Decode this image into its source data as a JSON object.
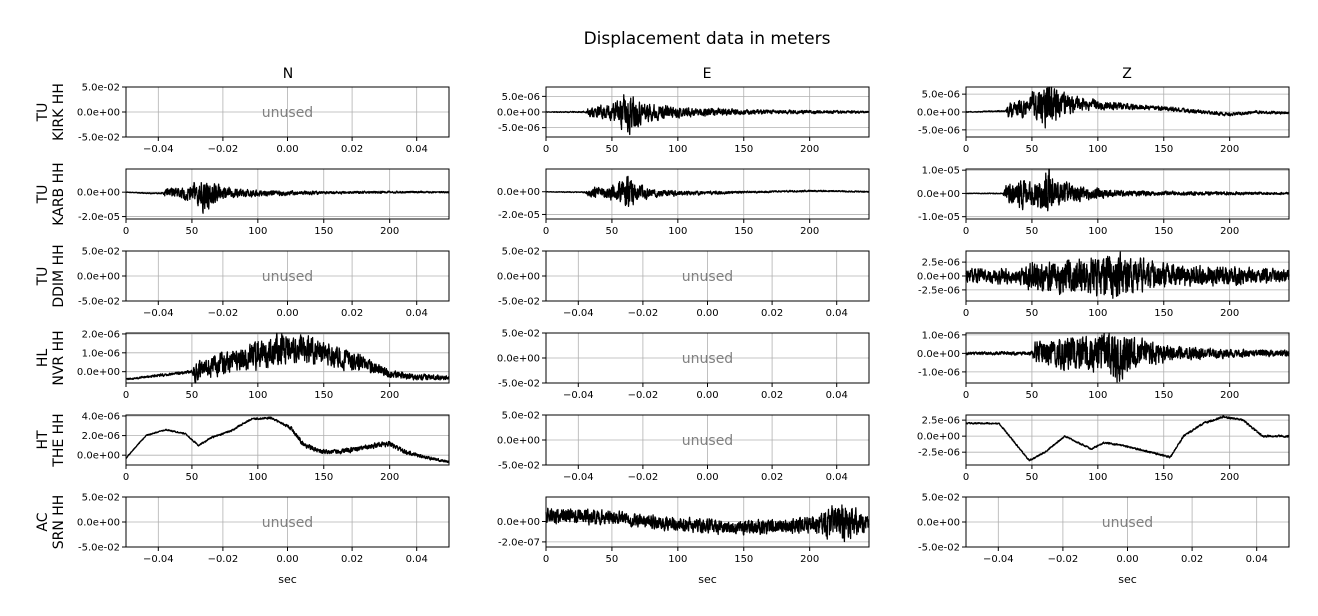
{
  "chart_data": {
    "type": "line",
    "title": "Displacement data in meters",
    "columns": [
      "N",
      "E",
      "Z"
    ],
    "stations": [
      {
        "net": "TU",
        "name": "KIRK HH"
      },
      {
        "net": "TU",
        "name": "KARB HH"
      },
      {
        "net": "TU",
        "name": "DDIM HH"
      },
      {
        "net": "HL",
        "name": "NVR HH"
      },
      {
        "net": "HT",
        "name": "THE HH"
      },
      {
        "net": "AC",
        "name": "SRN HH"
      }
    ],
    "xlabel": "sec",
    "unused_label": "unused",
    "used_xlim": [
      0,
      245
    ],
    "used_xticks": [
      0,
      50,
      100,
      150,
      200
    ],
    "used_xtick_labels": [
      "0",
      "50",
      "100",
      "150",
      "200"
    ],
    "unused_xlim": [
      -0.05,
      0.05
    ],
    "unused_xticks": [
      -0.04,
      -0.02,
      0.0,
      0.02,
      0.04
    ],
    "unused_xtick_labels": [
      "−0.04",
      "−0.02",
      "0.00",
      "0.02",
      "0.04"
    ],
    "unused_ylim": [
      -0.05,
      0.05
    ],
    "unused_yticks": [
      -0.05,
      0.0,
      0.05
    ],
    "unused_ytick_labels": [
      "-5.0e-02",
      "0.0e+00",
      "5.0e-02"
    ],
    "grid": true,
    "traces": [
      [
        {
          "used": false
        },
        {
          "used": true,
          "ylim": [
            -8e-06,
            8e-06
          ],
          "yticks": [
            -5e-06,
            0,
            5e-06
          ],
          "ytick_labels": [
            "-5.0e-06",
            "0.0e+00",
            "5.0e-06"
          ],
          "seed": 11,
          "envelope": [
            [
              0,
              1e-07
            ],
            [
              30,
              2e-07
            ],
            [
              32,
              1.5e-06
            ],
            [
              45,
              2e-06
            ],
            [
              55,
              3.5e-06
            ],
            [
              62,
              7e-06
            ],
            [
              68,
              4e-06
            ],
            [
              80,
              2.5e-06
            ],
            [
              100,
              1.5e-06
            ],
            [
              150,
              7e-07
            ],
            [
              245,
              3e-07
            ]
          ],
          "baseline": [
            [
              0,
              0
            ],
            [
              245,
              0
            ]
          ]
        },
        {
          "used": true,
          "ylim": [
            -7e-06,
            7e-06
          ],
          "yticks": [
            -5e-06,
            0,
            5e-06
          ],
          "ytick_labels": [
            "-5.0e-06",
            "0.0e+00",
            "5.0e-06"
          ],
          "seed": 12,
          "envelope": [
            [
              0,
              1e-07
            ],
            [
              30,
              2e-07
            ],
            [
              32,
              2e-06
            ],
            [
              45,
              2.5e-06
            ],
            [
              55,
              4e-06
            ],
            [
              62,
              7e-06
            ],
            [
              70,
              3.5e-06
            ],
            [
              90,
              1.5e-06
            ],
            [
              130,
              6e-07
            ],
            [
              245,
              3e-07
            ]
          ],
          "baseline": [
            [
              0,
              0
            ],
            [
              30,
              3e-07
            ],
            [
              60,
              2.5e-06
            ],
            [
              100,
              2e-06
            ],
            [
              150,
              1e-06
            ],
            [
              200,
              -7e-07
            ],
            [
              220,
              0
            ],
            [
              245,
              -3e-07
            ]
          ]
        }
      ],
      [
        {
          "used": true,
          "ylim": [
            -2.2e-05,
            1.9e-05
          ],
          "yticks": [
            -2e-05,
            0
          ],
          "ytick_labels": [
            "-2.0e-05",
            "0.0e+00"
          ],
          "seed": 21,
          "envelope": [
            [
              0,
              2e-07
            ],
            [
              28,
              5e-07
            ],
            [
              30,
              4e-06
            ],
            [
              45,
              5e-06
            ],
            [
              55,
              9e-06
            ],
            [
              60,
              1.8e-05
            ],
            [
              66,
              8e-06
            ],
            [
              80,
              4e-06
            ],
            [
              100,
              2.5e-06
            ],
            [
              150,
              1e-06
            ],
            [
              245,
              6e-07
            ]
          ],
          "baseline": [
            [
              0,
              0
            ],
            [
              20,
              -1e-06
            ],
            [
              40,
              -5e-07
            ],
            [
              100,
              -1e-06
            ],
            [
              200,
              0
            ],
            [
              245,
              0
            ]
          ]
        },
        {
          "used": true,
          "ylim": [
            -2.4e-05,
            2e-05
          ],
          "yticks": [
            -2e-05,
            0
          ],
          "ytick_labels": [
            "-2.0e-05",
            "0.0e+00"
          ],
          "seed": 22,
          "envelope": [
            [
              0,
              2e-07
            ],
            [
              30,
              5e-07
            ],
            [
              32,
              3.5e-06
            ],
            [
              45,
              4.5e-06
            ],
            [
              55,
              8e-06
            ],
            [
              62,
              1.6e-05
            ],
            [
              68,
              7e-06
            ],
            [
              80,
              3.5e-06
            ],
            [
              100,
              2e-06
            ],
            [
              150,
              8e-07
            ],
            [
              245,
              5e-07
            ]
          ],
          "baseline": [
            [
              0,
              0
            ],
            [
              30,
              -5e-07
            ],
            [
              100,
              -1.5e-06
            ],
            [
              150,
              -5e-07
            ],
            [
              200,
              8e-07
            ],
            [
              245,
              0
            ]
          ]
        },
        {
          "used": true,
          "ylim": [
            -1.1e-05,
            1.05e-05
          ],
          "yticks": [
            -1e-05,
            0,
            1e-05
          ],
          "ytick_labels": [
            "-1.0e-05",
            "0.0e+00",
            "1.0e-05"
          ],
          "seed": 23,
          "envelope": [
            [
              0,
              1e-07
            ],
            [
              28,
              2e-07
            ],
            [
              30,
              3e-06
            ],
            [
              40,
              6e-06
            ],
            [
              50,
              5e-06
            ],
            [
              58,
              7e-06
            ],
            [
              62,
              1.1e-05
            ],
            [
              70,
              5e-06
            ],
            [
              90,
              2.5e-06
            ],
            [
              120,
              1e-06
            ],
            [
              245,
              4e-07
            ]
          ],
          "baseline": [
            [
              0,
              0
            ],
            [
              245,
              0
            ]
          ]
        }
      ],
      [
        {
          "used": false
        },
        {
          "used": false
        },
        {
          "used": true,
          "ylim": [
            -4.5e-06,
            4.5e-06
          ],
          "yticks": [
            -2.5e-06,
            0,
            2.5e-06
          ],
          "ytick_labels": [
            "-2.5e-06",
            "0.0e+00",
            "2.5e-06"
          ],
          "seed": 31,
          "envelope": [
            [
              0,
              1.2e-06
            ],
            [
              45,
              1.3e-06
            ],
            [
              48,
              2.5e-06
            ],
            [
              60,
              2.8e-06
            ],
            [
              80,
              3e-06
            ],
            [
              100,
              3.2e-06
            ],
            [
              110,
              3.8e-06
            ],
            [
              130,
              2.8e-06
            ],
            [
              160,
              2e-06
            ],
            [
              200,
              1.5e-06
            ],
            [
              245,
              1e-06
            ]
          ],
          "baseline": [
            [
              0,
              0
            ],
            [
              245,
              0
            ]
          ]
        }
      ],
      [
        {
          "used": true,
          "ylim": [
            -6e-07,
            2.05e-06
          ],
          "yticks": [
            0,
            1e-06,
            2e-06
          ],
          "ytick_labels": [
            "0.0e+00",
            "1.0e-06",
            "2.0e-06"
          ],
          "seed": 41,
          "envelope": [
            [
              0,
              4e-08
            ],
            [
              50,
              8e-08
            ],
            [
              52,
              5e-07
            ],
            [
              80,
              6e-07
            ],
            [
              100,
              7e-07
            ],
            [
              120,
              8e-07
            ],
            [
              150,
              6e-07
            ],
            [
              180,
              4e-07
            ],
            [
              200,
              2e-07
            ],
            [
              245,
              1e-07
            ]
          ],
          "baseline": [
            [
              0,
              -4e-07
            ],
            [
              50,
              0
            ],
            [
              80,
              5e-07
            ],
            [
              100,
              9e-07
            ],
            [
              120,
              1.2e-06
            ],
            [
              150,
              1e-06
            ],
            [
              180,
              4e-07
            ],
            [
              200,
              -1e-07
            ],
            [
              220,
              -3e-07
            ],
            [
              245,
              -3e-07
            ]
          ]
        },
        {
          "used": false
        },
        {
          "used": true,
          "ylim": [
            -1.6e-06,
            1.1e-06
          ],
          "yticks": [
            -1e-06,
            0,
            1e-06
          ],
          "ytick_labels": [
            "-1.0e-06",
            "0.0e+00",
            "1.0e-06"
          ],
          "seed": 43,
          "envelope": [
            [
              0,
              6e-08
            ],
            [
              50,
              1e-07
            ],
            [
              52,
              6e-07
            ],
            [
              80,
              8e-07
            ],
            [
              100,
              9e-07
            ],
            [
              115,
              1.3e-06
            ],
            [
              130,
              7e-07
            ],
            [
              160,
              3.5e-07
            ],
            [
              200,
              2e-07
            ],
            [
              245,
              1.5e-07
            ]
          ],
          "baseline": [
            [
              0,
              0
            ],
            [
              245,
              0
            ]
          ]
        }
      ],
      [
        {
          "used": true,
          "ylim": [
            -1e-06,
            4.1e-06
          ],
          "yticks": [
            0,
            2e-06,
            4e-06
          ],
          "ytick_labels": [
            "0.0e+00",
            "2.0e-06",
            "4.0e-06"
          ],
          "seed": 51,
          "envelope": [
            [
              0,
              5e-08
            ],
            [
              120,
              1e-07
            ],
            [
              125,
              2e-07
            ],
            [
              200,
              2.5e-07
            ],
            [
              245,
              1e-07
            ]
          ],
          "baseline": [
            [
              0,
              -3e-07
            ],
            [
              15,
              2e-06
            ],
            [
              30,
              2.6e-06
            ],
            [
              45,
              2.2e-06
            ],
            [
              55,
              1e-06
            ],
            [
              65,
              1.8e-06
            ],
            [
              80,
              2.5e-06
            ],
            [
              95,
              3.7e-06
            ],
            [
              110,
              3.8e-06
            ],
            [
              125,
              2.8e-06
            ],
            [
              135,
              1e-06
            ],
            [
              150,
              3e-07
            ],
            [
              170,
              5e-07
            ],
            [
              185,
              9e-07
            ],
            [
              200,
              1.2e-06
            ],
            [
              210,
              4e-07
            ],
            [
              230,
              -3e-07
            ],
            [
              245,
              -7e-07
            ]
          ]
        },
        {
          "used": false
        },
        {
          "used": true,
          "ylim": [
            -4.5e-06,
            3.3e-06
          ],
          "yticks": [
            -2.5e-06,
            0,
            2.5e-06
          ],
          "ytick_labels": [
            "-2.5e-06",
            "0.0e+00",
            "2.5e-06"
          ],
          "seed": 53,
          "envelope": [
            [
              0,
              1e-07
            ],
            [
              245,
              1.5e-07
            ]
          ],
          "baseline": [
            [
              0,
              2e-06
            ],
            [
              25,
              2e-06
            ],
            [
              35,
              -5e-07
            ],
            [
              48,
              -3.8e-06
            ],
            [
              60,
              -2.5e-06
            ],
            [
              75,
              0
            ],
            [
              85,
              -1e-06
            ],
            [
              95,
              -2e-06
            ],
            [
              105,
              -1e-06
            ],
            [
              120,
              -1.5e-06
            ],
            [
              140,
              -2.5e-06
            ],
            [
              155,
              -3.3e-06
            ],
            [
              165,
              0
            ],
            [
              180,
              2e-06
            ],
            [
              195,
              3e-06
            ],
            [
              210,
              2.5e-06
            ],
            [
              225,
              0
            ],
            [
              245,
              0
            ]
          ]
        }
      ],
      [
        {
          "used": false
        },
        {
          "used": true,
          "ylim": [
            -2.5e-07,
            2.4e-07
          ],
          "yticks": [
            -2e-07,
            0
          ],
          "ytick_labels": [
            "-2.0e-07",
            "0.0e+00"
          ],
          "seed": 62,
          "envelope": [
            [
              0,
              7e-08
            ],
            [
              100,
              6e-08
            ],
            [
              200,
              7e-08
            ],
            [
              225,
              1.8e-07
            ],
            [
              245,
              8e-08
            ]
          ],
          "baseline": [
            [
              0,
              6e-08
            ],
            [
              50,
              4e-08
            ],
            [
              100,
              -3e-08
            ],
            [
              150,
              -6e-08
            ],
            [
              200,
              -3e-08
            ],
            [
              245,
              0
            ]
          ]
        },
        {
          "used": false
        }
      ]
    ]
  }
}
